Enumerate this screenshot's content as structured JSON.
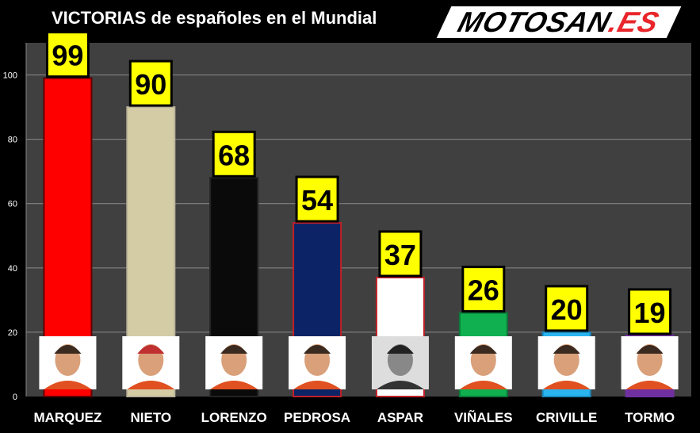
{
  "title": "VICTORIAS de españoles en el Mundial",
  "logo": {
    "text_main": "MOTOSAN",
    "text_accent": ".ES"
  },
  "chart_data": {
    "type": "bar",
    "title": "VICTORIAS de españoles en el Mundial",
    "categories": [
      "MARQUEZ",
      "NIETO",
      "LORENZO",
      "PEDROSA",
      "ASPAR",
      "VIÑALES",
      "CRIVILLE",
      "TORMO"
    ],
    "values": [
      99,
      90,
      68,
      54,
      37,
      26,
      20,
      19
    ],
    "colors": [
      "#ff0000",
      "#d4cca4",
      "#0a0a0a",
      "#0c2466",
      "#ffffff",
      "#10b050",
      "#2ab4f0",
      "#7030a0"
    ],
    "borders": [
      "#600000",
      "#bbb39a",
      "#222222",
      "#c0202a",
      "#c0202a",
      "#0a7a3a",
      "#1a8ac0",
      "#7030a0"
    ],
    "yticks": [
      0,
      20,
      40,
      60,
      80,
      100
    ],
    "ylim": [
      0,
      110
    ],
    "grid": true,
    "xlabel": "",
    "ylabel": ""
  }
}
